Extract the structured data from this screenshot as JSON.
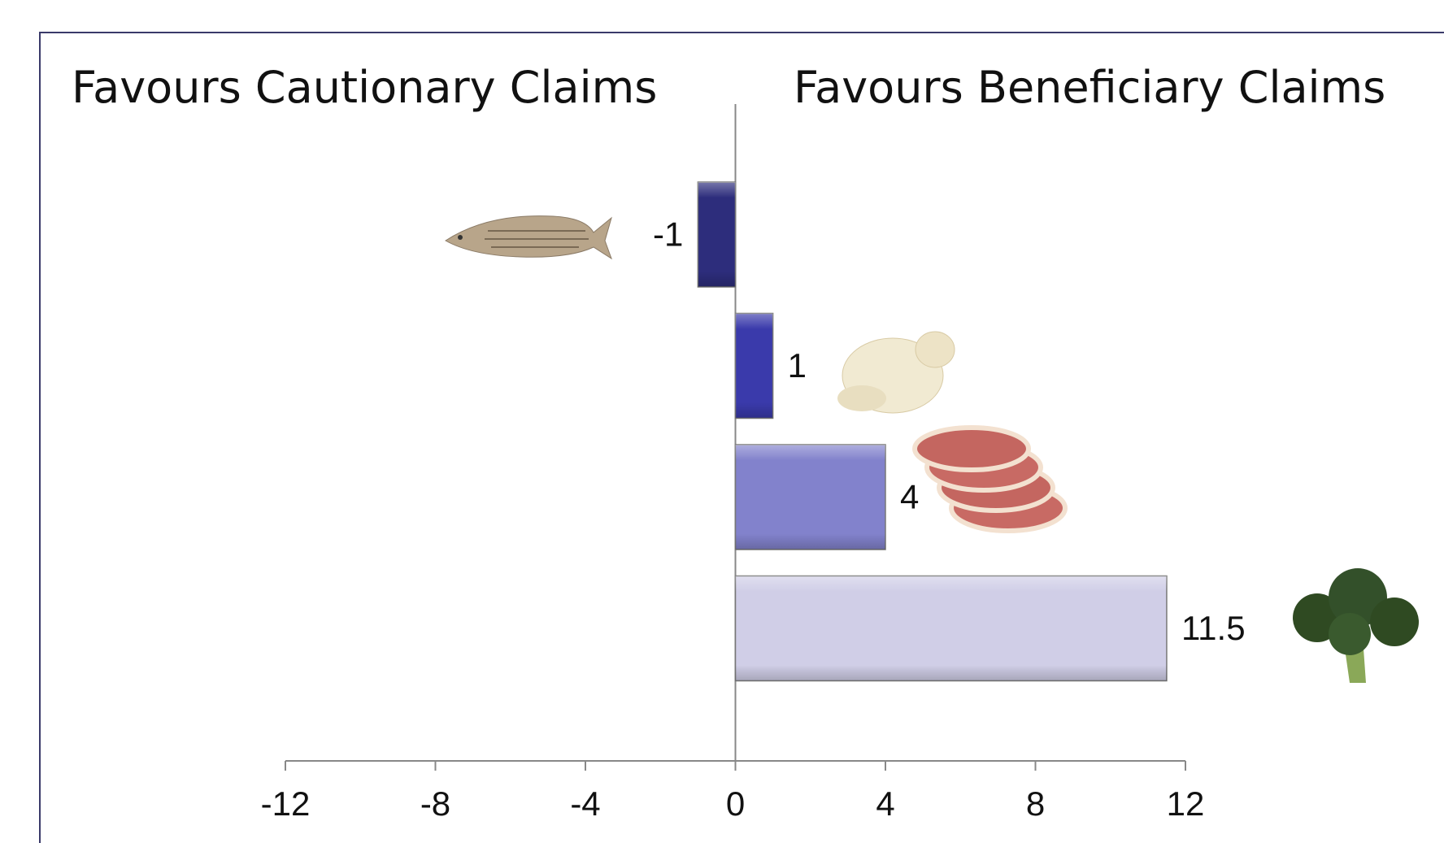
{
  "chart_data": {
    "type": "bar",
    "orientation": "horizontal",
    "annotations": [
      "Favours Cautionary Claims",
      "Favours Beneficiary Claims"
    ],
    "categories": [
      null,
      null,
      null,
      null
    ],
    "values": [
      -1,
      1,
      4,
      11.5
    ],
    "colors": [
      "#2d2d7c",
      "#3a3aab",
      "#8282cc",
      "#d0cee7"
    ],
    "xlim": [
      -12,
      12
    ],
    "xticks": [
      -12,
      -8,
      -4,
      0,
      4,
      8,
      12
    ],
    "grid": false
  }
}
